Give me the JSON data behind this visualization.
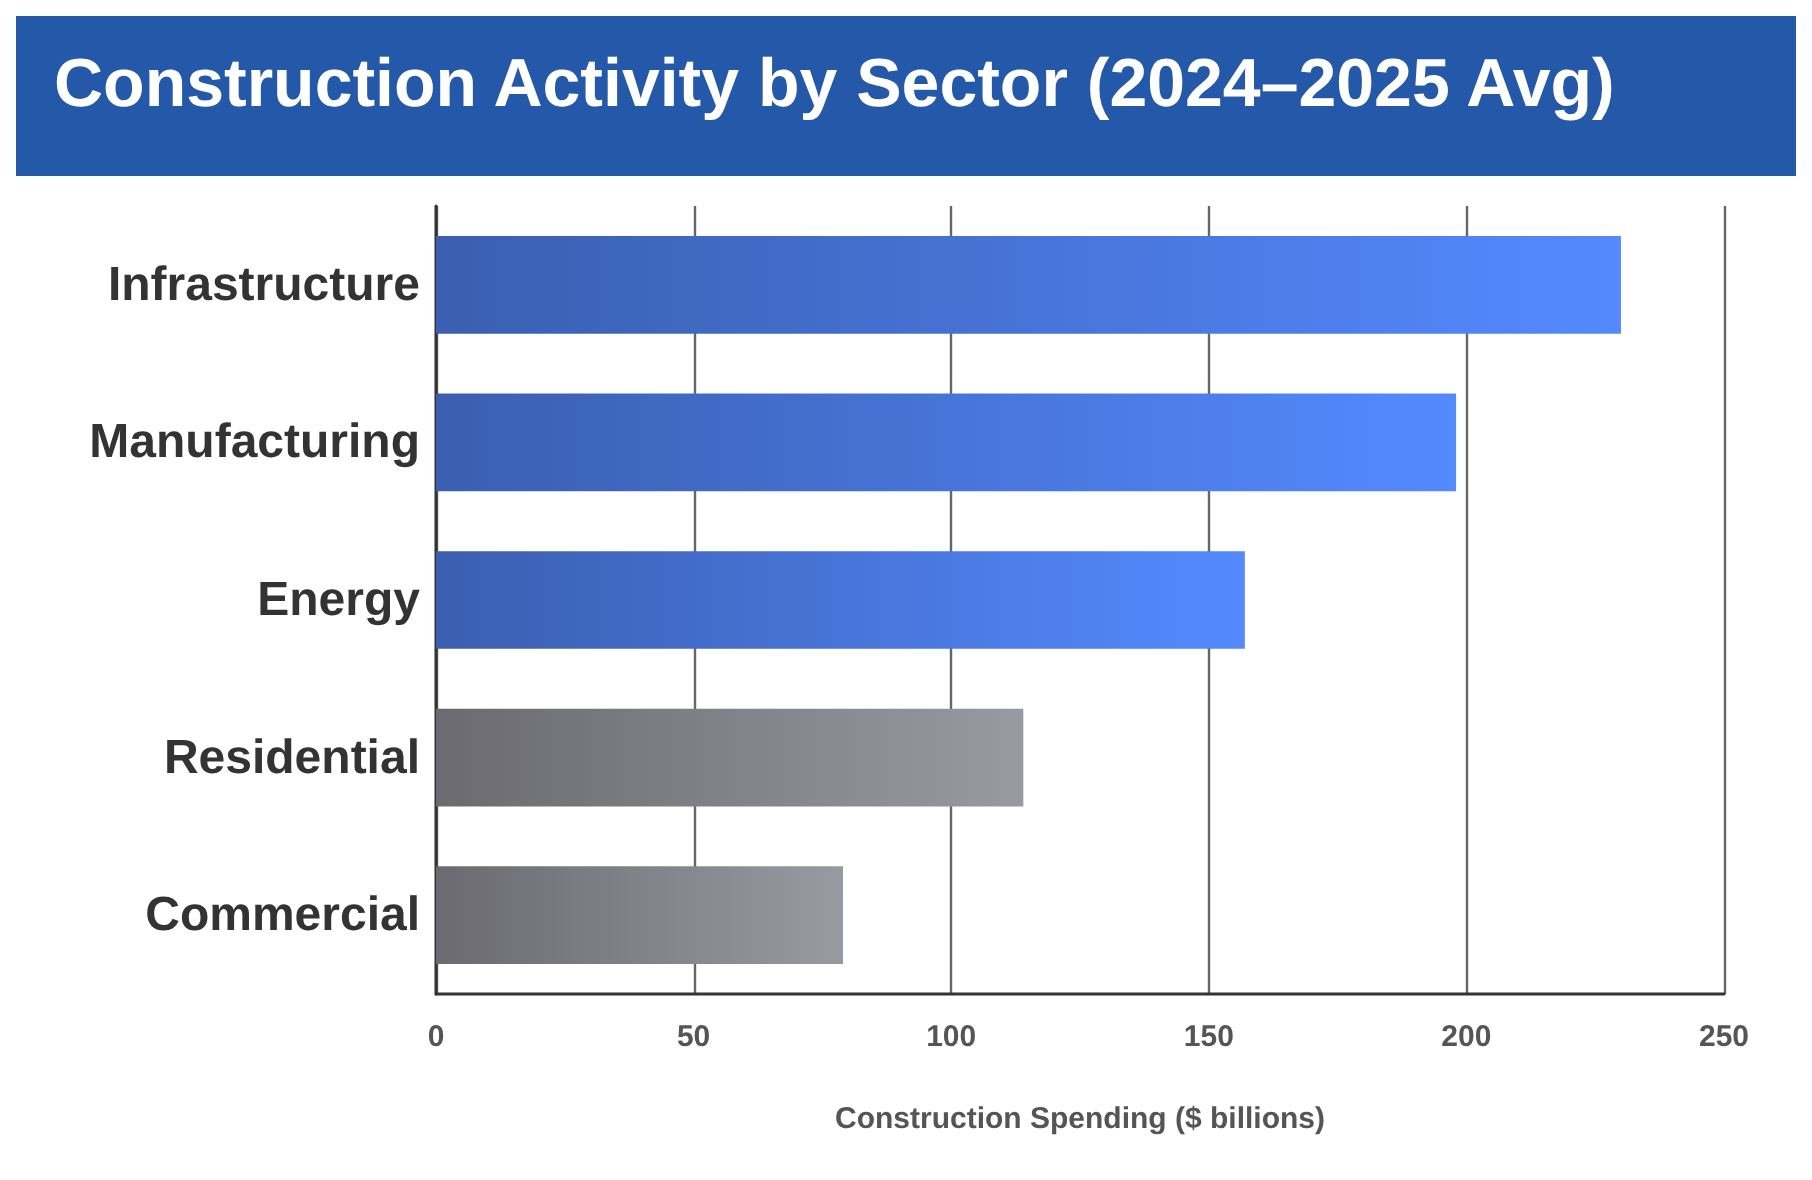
{
  "chart_data": {
    "type": "bar",
    "orientation": "horizontal",
    "title": "Construction Activity by Sector (2024–2025 Avg)",
    "xlabel": "Construction Spending ($ billions)",
    "categories": [
      "Infrastructure",
      "Manufacturing",
      "Energy",
      "Residential",
      "Commercial"
    ],
    "values": [
      230,
      198,
      157,
      114,
      79
    ],
    "colors": [
      "#3a5fb0",
      "#3a5fb0",
      "#3a5fb0",
      "#6a6a70",
      "#6a6a70"
    ],
    "xlim": [
      0,
      250
    ],
    "xticks": [
      0,
      50,
      100,
      150,
      200,
      250
    ],
    "grid": "x"
  }
}
